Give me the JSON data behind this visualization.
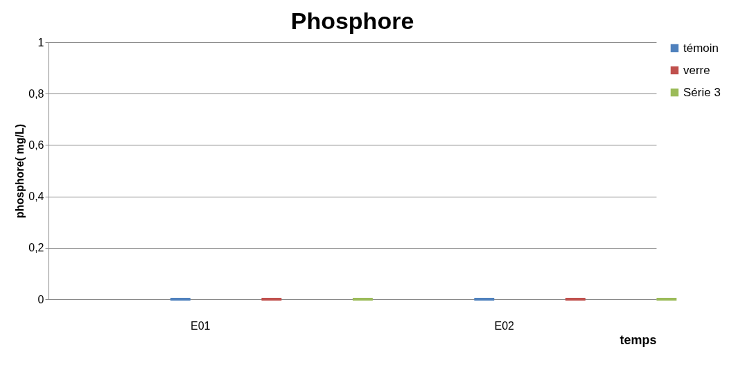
{
  "chart_data": {
    "type": "bar",
    "title": "Phosphore",
    "xlabel": "temps",
    "ylabel": "phosphore( mg/L)",
    "categories": [
      "E01",
      "E02"
    ],
    "series": [
      {
        "name": "témoin",
        "color": "#4f81bd",
        "values": [
          0,
          0
        ]
      },
      {
        "name": "verre",
        "color": "#c0504d",
        "values": [
          0,
          0
        ]
      },
      {
        "name": "Série 3",
        "color": "#9bbb59",
        "values": [
          0,
          0
        ]
      }
    ],
    "ylim": [
      0,
      1
    ],
    "yticks": [
      0,
      {
        "value": 0.2,
        "label": "0,2"
      },
      {
        "value": 0.4,
        "label": "0,4"
      },
      {
        "value": 0.6,
        "label": "0,6"
      },
      {
        "value": 0.8,
        "label": "0,8"
      },
      1
    ],
    "grid": "y",
    "legend": "right"
  }
}
